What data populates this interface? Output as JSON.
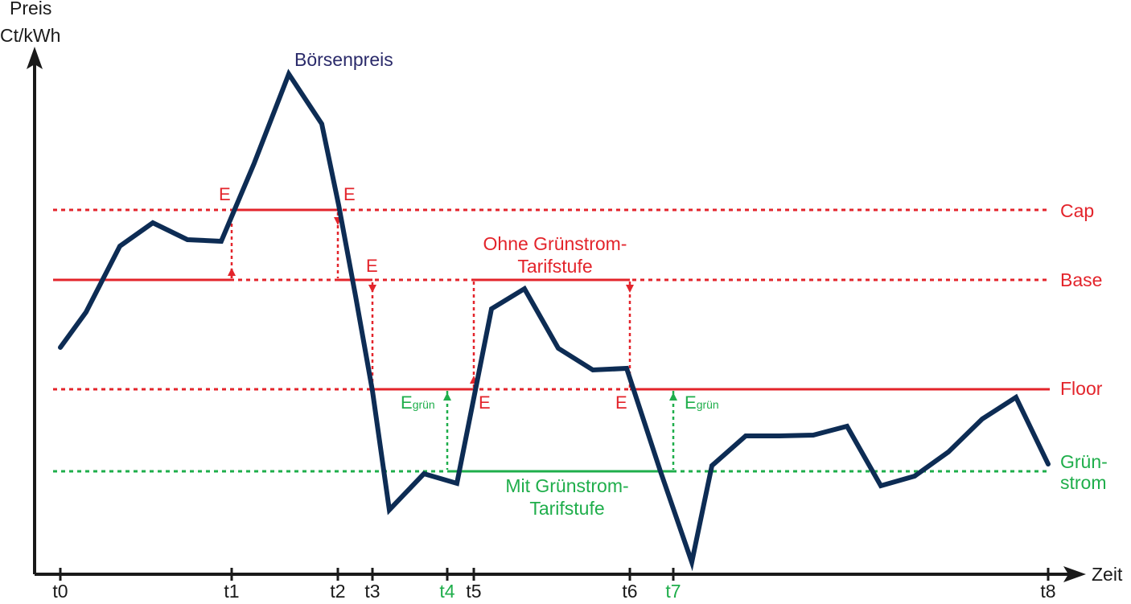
{
  "axis": {
    "y_label_line1": "Preis",
    "y_label_line2": "Ct/kWh",
    "x_label": "Zeit"
  },
  "ticks": [
    {
      "label": "t0",
      "color": "black"
    },
    {
      "label": "t1",
      "color": "black"
    },
    {
      "label": "t2",
      "color": "black"
    },
    {
      "label": "t3",
      "color": "black"
    },
    {
      "label": "t4",
      "color": "green"
    },
    {
      "label": "t5",
      "color": "black"
    },
    {
      "label": "t6",
      "color": "black"
    },
    {
      "label": "t7",
      "color": "green"
    },
    {
      "label": "t8",
      "color": "black"
    }
  ],
  "levels": {
    "cap": "Cap",
    "base": "Base",
    "floor": "Floor",
    "gruen_line1": "Grün-",
    "gruen_line2": "strom"
  },
  "annotations": {
    "boersenpreis": "Börsenpreis",
    "ohne_line1": "Ohne Grünstrom-",
    "ohne_line2": "Tarifstufe",
    "mit_line1": "Mit Grünstrom-",
    "mit_line2": "Tarifstufe",
    "e": "E",
    "e_gruen_base": "E",
    "e_gruen_sub": "grün"
  },
  "colors": {
    "price_line": "#0d2c54",
    "tariff_red": "#e3242b",
    "tariff_green": "#1fae4b",
    "axis": "#1a1a1a",
    "title_navy": "#2a2a6a"
  }
}
